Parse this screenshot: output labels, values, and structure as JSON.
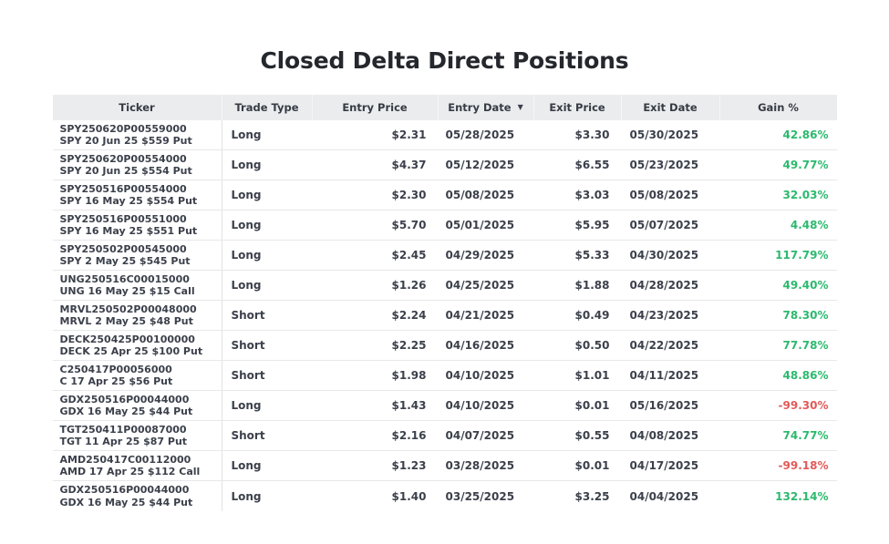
{
  "title": "Closed Delta Direct Positions",
  "icons": {
    "sort_desc": "▼"
  },
  "colors": {
    "gain_positive": "#2cb96e",
    "gain_negative": "#e25a5a",
    "header_bg": "#ebecee"
  },
  "table": {
    "columns": [
      {
        "key": "ticker",
        "label": "Ticker"
      },
      {
        "key": "trade_type",
        "label": "Trade Type"
      },
      {
        "key": "entry_price",
        "label": "Entry Price"
      },
      {
        "key": "entry_date",
        "label": "Entry Date",
        "sorted": "desc"
      },
      {
        "key": "exit_price",
        "label": "Exit Price"
      },
      {
        "key": "exit_date",
        "label": "Exit Date"
      },
      {
        "key": "gain_pct",
        "label": "Gain %"
      }
    ],
    "rows": [
      {
        "ticker_symbol": "SPY250620P00559000",
        "ticker_desc": "SPY 20 Jun 25 $559 Put",
        "trade_type": "Long",
        "entry_price": "$2.31",
        "entry_date": "05/28/2025",
        "exit_price": "$3.30",
        "exit_date": "05/30/2025",
        "gain_pct": "42.86%"
      },
      {
        "ticker_symbol": "SPY250620P00554000",
        "ticker_desc": "SPY 20 Jun 25 $554 Put",
        "trade_type": "Long",
        "entry_price": "$4.37",
        "entry_date": "05/12/2025",
        "exit_price": "$6.55",
        "exit_date": "05/23/2025",
        "gain_pct": "49.77%"
      },
      {
        "ticker_symbol": "SPY250516P00554000",
        "ticker_desc": "SPY 16 May 25 $554 Put",
        "trade_type": "Long",
        "entry_price": "$2.30",
        "entry_date": "05/08/2025",
        "exit_price": "$3.03",
        "exit_date": "05/08/2025",
        "gain_pct": "32.03%"
      },
      {
        "ticker_symbol": "SPY250516P00551000",
        "ticker_desc": "SPY 16 May 25 $551 Put",
        "trade_type": "Long",
        "entry_price": "$5.70",
        "entry_date": "05/01/2025",
        "exit_price": "$5.95",
        "exit_date": "05/07/2025",
        "gain_pct": "4.48%"
      },
      {
        "ticker_symbol": "SPY250502P00545000",
        "ticker_desc": "SPY 2 May 25 $545 Put",
        "trade_type": "Long",
        "entry_price": "$2.45",
        "entry_date": "04/29/2025",
        "exit_price": "$5.33",
        "exit_date": "04/30/2025",
        "gain_pct": "117.79%"
      },
      {
        "ticker_symbol": "UNG250516C00015000",
        "ticker_desc": "UNG 16 May 25 $15 Call",
        "trade_type": "Long",
        "entry_price": "$1.26",
        "entry_date": "04/25/2025",
        "exit_price": "$1.88",
        "exit_date": "04/28/2025",
        "gain_pct": "49.40%"
      },
      {
        "ticker_symbol": "MRVL250502P00048000",
        "ticker_desc": "MRVL 2 May 25 $48 Put",
        "trade_type": "Short",
        "entry_price": "$2.24",
        "entry_date": "04/21/2025",
        "exit_price": "$0.49",
        "exit_date": "04/23/2025",
        "gain_pct": "78.30%"
      },
      {
        "ticker_symbol": "DECK250425P00100000",
        "ticker_desc": "DECK 25 Apr 25 $100 Put",
        "trade_type": "Short",
        "entry_price": "$2.25",
        "entry_date": "04/16/2025",
        "exit_price": "$0.50",
        "exit_date": "04/22/2025",
        "gain_pct": "77.78%"
      },
      {
        "ticker_symbol": "C250417P00056000",
        "ticker_desc": "C 17 Apr 25 $56 Put",
        "trade_type": "Short",
        "entry_price": "$1.98",
        "entry_date": "04/10/2025",
        "exit_price": "$1.01",
        "exit_date": "04/11/2025",
        "gain_pct": "48.86%"
      },
      {
        "ticker_symbol": "GDX250516P00044000",
        "ticker_desc": "GDX 16 May 25 $44 Put",
        "trade_type": "Long",
        "entry_price": "$1.43",
        "entry_date": "04/10/2025",
        "exit_price": "$0.01",
        "exit_date": "05/16/2025",
        "gain_pct": "-99.30%"
      },
      {
        "ticker_symbol": "TGT250411P00087000",
        "ticker_desc": "TGT 11 Apr 25 $87 Put",
        "trade_type": "Short",
        "entry_price": "$2.16",
        "entry_date": "04/07/2025",
        "exit_price": "$0.55",
        "exit_date": "04/08/2025",
        "gain_pct": "74.77%"
      },
      {
        "ticker_symbol": "AMD250417C00112000",
        "ticker_desc": "AMD 17 Apr 25 $112 Call",
        "trade_type": "Long",
        "entry_price": "$1.23",
        "entry_date": "03/28/2025",
        "exit_price": "$0.01",
        "exit_date": "04/17/2025",
        "gain_pct": "-99.18%"
      },
      {
        "ticker_symbol": "GDX250516P00044000",
        "ticker_desc": "GDX 16 May 25 $44 Put",
        "trade_type": "Long",
        "entry_price": "$1.40",
        "entry_date": "03/25/2025",
        "exit_price": "$3.25",
        "exit_date": "04/04/2025",
        "gain_pct": "132.14%"
      }
    ]
  }
}
